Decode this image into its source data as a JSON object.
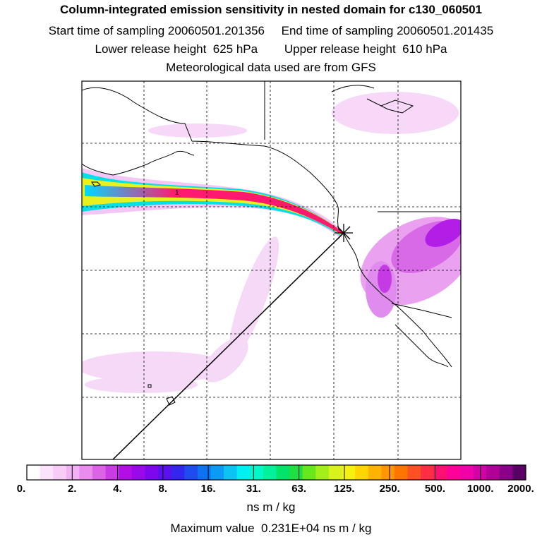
{
  "header": {
    "title": "Column-integrated emission sensitivity in nested domain for c130_060501",
    "line2": "Start time of sampling 20060501.201356     End time of sampling 20060501.201435",
    "line3": "Lower release height  625 hPa        Upper release height  610 hPa",
    "line4": "Meteorological data used are from GFS"
  },
  "map": {
    "contour_label": "1",
    "features": [
      "coastline",
      "state-borders",
      "graticule",
      "release-point-marker",
      "sampling-track-line",
      "emission-sensitivity-plume"
    ]
  },
  "colorbar": {
    "tick_labels": [
      "0.",
      "2.",
      "4.",
      "8.",
      "16.",
      "31.",
      "63.",
      "125.",
      "250.",
      "500.",
      "1000.",
      "2000."
    ],
    "colors": [
      "#ffffff",
      "#fbe3fb",
      "#f7cdf7",
      "#f1b2f3",
      "#e98cee",
      "#dc62e6",
      "#c93be3",
      "#b40ee6",
      "#9a08ec",
      "#7d08f0",
      "#5b10f0",
      "#3426ee",
      "#1f4cf0",
      "#0d73f2",
      "#0a9bf5",
      "#0bc4f4",
      "#00f0f0",
      "#00f7c8",
      "#00f29a",
      "#00e46a",
      "#1ee040",
      "#66e81a",
      "#a4ef1a",
      "#d8f21c",
      "#f5f20f",
      "#ffd600",
      "#ffb400",
      "#ff9600",
      "#ff7500",
      "#ff4f25",
      "#ff2e45",
      "#ff1072",
      "#ff0099",
      "#f200a8",
      "#d400a8",
      "#b10098",
      "#8b0088",
      "#5a0064"
    ],
    "unit": "ns m / kg"
  },
  "footer": {
    "max_value_text": "Maximum value  0.231E+04 ns m / kg"
  }
}
